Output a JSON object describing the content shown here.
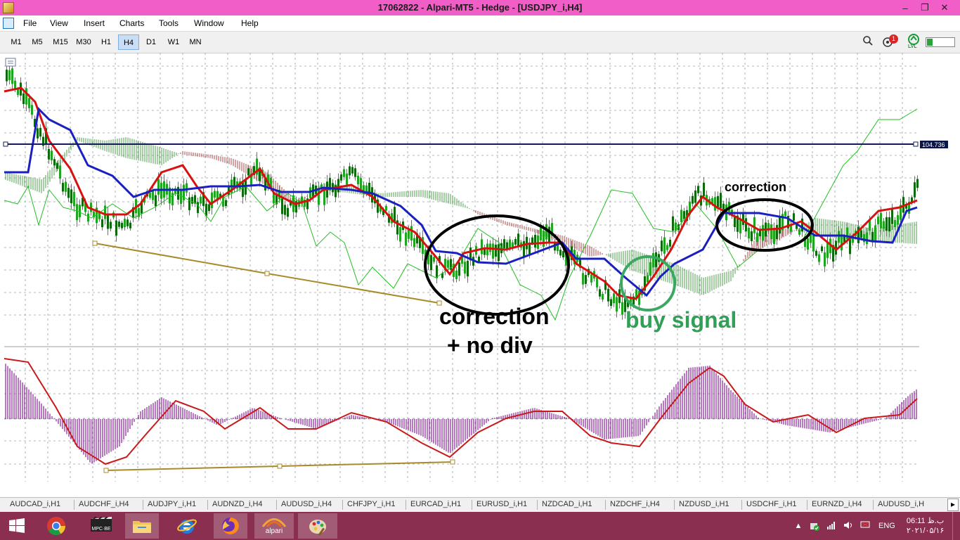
{
  "window": {
    "title": "17062822 - Alpari-MT5 - Hedge - [USDJPY_i,H4]",
    "buttons": {
      "minimize": "–",
      "restore": "❐",
      "close": "✕"
    }
  },
  "menu": [
    "File",
    "View",
    "Insert",
    "Charts",
    "Tools",
    "Window",
    "Help"
  ],
  "timeframes": [
    "M1",
    "M5",
    "M15",
    "M30",
    "H1",
    "H4",
    "D1",
    "W1",
    "MN"
  ],
  "active_timeframe": "H4",
  "toolbar_right": {
    "notification_count": "1",
    "level_badge": "LVL"
  },
  "chart": {
    "price_label": "104.736",
    "annotations": {
      "correction_top": "correction",
      "correction_main": "correction",
      "no_div": "+ no div",
      "buy_signal": "buy signal"
    },
    "colors": {
      "tenkan": "#d81010",
      "kijun": "#1a20c0",
      "chikou": "#22c022",
      "candles": "#1fa51f",
      "cloud_bull": "#2f8f2f",
      "cloud_bear": "#9a2b2b",
      "osc_hist": "#8a1f9a",
      "osc_signal": "#c81a1a",
      "trendline": "#a88a2a",
      "buy_circle": "#3aa860"
    }
  },
  "symbol_tabs": [
    "AUDCAD_i,H1",
    "AUDCHF_i,H4",
    "AUDJPY_i,H1",
    "AUDNZD_i,H4",
    "AUDUSD_i,H4",
    "CHFJPY_i,H1",
    "EURCAD_i,H1",
    "EURUSD_i,H1",
    "NZDCAD_i,H1",
    "NZDCHF_i,H4",
    "NZDUSD_i,H1",
    "USDCHF_i,H1",
    "EURNZD_i,H4",
    "AUDUSD_i,H"
  ],
  "taskbar": {
    "apps": [
      "start-icon",
      "chrome-icon",
      "mpc-be-icon",
      "file-explorer-icon",
      "ie-icon",
      "firefox-icon",
      "alpari-icon",
      "paint-icon"
    ],
    "mpc_label": "MPC·BE",
    "alpari_label": "alpari",
    "lang": "ENG",
    "time": "06:11 ب.ظ",
    "date": "۲۰۲۱/۰۵/۱۶"
  }
}
